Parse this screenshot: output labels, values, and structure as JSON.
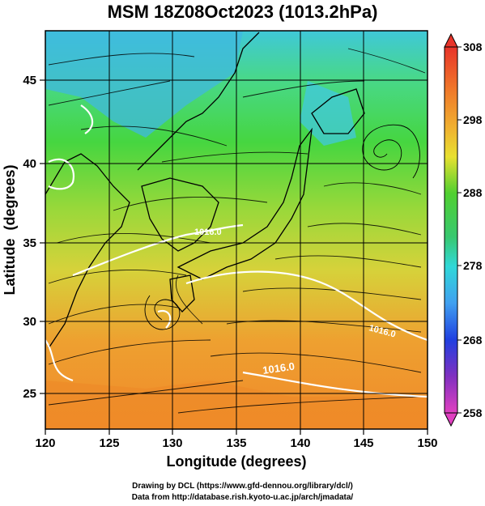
{
  "title": "MSM 18Z08Oct2023 (1013.2hPa)",
  "map": {
    "xlabel": "Longitude (degrees)",
    "ylabel": "Latitude  (degrees)",
    "lon_range": [
      120,
      150
    ],
    "lat_range": [
      22.5,
      47.5
    ],
    "lon_ticks": [
      "120",
      "125",
      "130",
      "135",
      "140",
      "145",
      "150"
    ],
    "lat_ticks": [
      "25",
      "30",
      "35",
      "40",
      "45"
    ],
    "contour_labels": [
      "1016.0",
      "1016.0",
      "1016.0"
    ]
  },
  "colorbar": {
    "min": 258,
    "max": 308,
    "ticks": [
      "308",
      "298",
      "288",
      "278",
      "268",
      "258"
    ]
  },
  "credits": {
    "line1": "Drawing by DCL (https://www.gfd-dennou.org/library/dcl/)",
    "line2": "Data from http://database.rish.kyoto-u.ac.jp/arch/jmadata/"
  }
}
